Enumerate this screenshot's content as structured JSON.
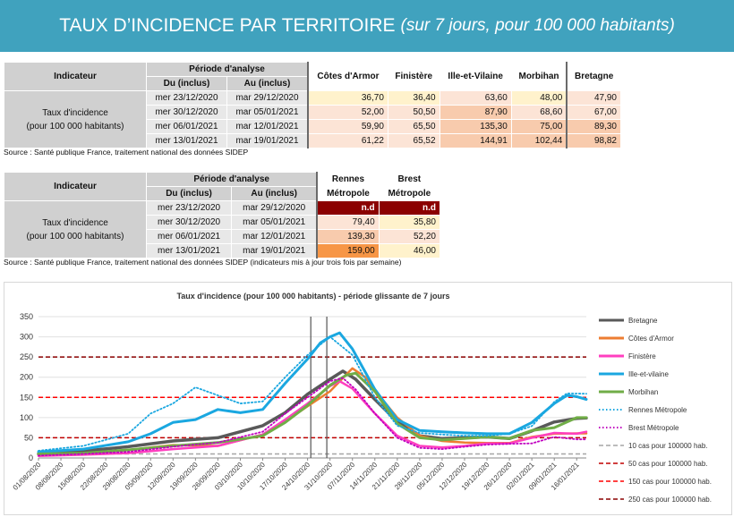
{
  "banner": {
    "title": "TAUX D’INCIDENCE PAR TERRITOIRE",
    "subtitle": "(sur 7 jours, pour 100 000 habitants)"
  },
  "table1": {
    "h_indicateur": "Indicateur",
    "h_periode": "Période d'analyse",
    "h_du": "Du (inclus)",
    "h_au": "Au (inclus)",
    "cols": [
      "Côtes d'Armor",
      "Finistère",
      "Ille-et-Vilaine",
      "Morbihan",
      "Bretagne"
    ],
    "label1": "Taux d'incidence",
    "label2": "(pour 100 000 habitants)",
    "rows": [
      {
        "du": "mer 23/12/2020",
        "au": "mar 29/12/2020",
        "vals": [
          "36,70",
          "36,40",
          "63,60",
          "48,00",
          "47,90"
        ],
        "colors": [
          "#fff2cc",
          "#fff2cc",
          "#fce4d6",
          "#fff2cc",
          "#fce4d6"
        ]
      },
      {
        "du": "mer 30/12/2020",
        "au": "mar 05/01/2021",
        "vals": [
          "52,00",
          "50,50",
          "87,90",
          "68,60",
          "67,00"
        ],
        "colors": [
          "#fce4d6",
          "#fce4d6",
          "#f8cbad",
          "#fce4d6",
          "#fce4d6"
        ]
      },
      {
        "du": "mer 06/01/2021",
        "au": "mar 12/01/2021",
        "vals": [
          "59,90",
          "65,50",
          "135,30",
          "75,00",
          "89,30"
        ],
        "colors": [
          "#fce4d6",
          "#fce4d6",
          "#f8cbad",
          "#f8cbad",
          "#f8cbad"
        ]
      },
      {
        "du": "mer 13/01/2021",
        "au": "mar 19/01/2021",
        "vals": [
          "61,22",
          "65,52",
          "144,91",
          "102,44",
          "98,82"
        ],
        "colors": [
          "#fce4d6",
          "#fce4d6",
          "#f8cbad",
          "#f8cbad",
          "#f8cbad"
        ]
      }
    ],
    "source": "Source  : Santé publique France, traitement national des données SIDEP"
  },
  "table2": {
    "h_indicateur": "Indicateur",
    "h_periode": "Période d'analyse",
    "h_du": "Du (inclus)",
    "h_au": "Au (inclus)",
    "col1_l1": "Rennes",
    "col1_l2": "Métropole",
    "col2_l1": "Brest",
    "col2_l2": "Métropole",
    "label1": "Taux d'incidence",
    "label2": "(pour 100 000 habitants)",
    "rows": [
      {
        "du": "mer 23/12/2020",
        "au": "mar 29/12/2020",
        "vals": [
          "n.d",
          "n.d"
        ],
        "colors": [
          "#8b0000",
          "#8b0000"
        ],
        "textcolors": [
          "#ffffff",
          "#ffffff"
        ]
      },
      {
        "du": "mer 30/12/2020",
        "au": "mar 05/01/2021",
        "vals": [
          "79,40",
          "35,80"
        ],
        "colors": [
          "#fce4d6",
          "#fff2cc"
        ],
        "textcolors": [
          "#111111",
          "#111111"
        ]
      },
      {
        "du": "mer 06/01/2021",
        "au": "mar 12/01/2021",
        "vals": [
          "139,30",
          "52,20"
        ],
        "colors": [
          "#f8cbad",
          "#fce4d6"
        ],
        "textcolors": [
          "#111111",
          "#111111"
        ]
      },
      {
        "du": "mer 13/01/2021",
        "au": "mar 19/01/2021",
        "vals": [
          "159,00",
          "46,00"
        ],
        "colors": [
          "#f79646",
          "#fff2cc"
        ],
        "textcolors": [
          "#111111",
          "#111111"
        ]
      }
    ],
    "source": "Source  : Santé publique France, traitement national des données SIDEP (indicateurs mis à jour trois fois par semaine)"
  },
  "chart_data": {
    "type": "line",
    "title": "Taux d'incidence (pour 100 000 habitants) - période glissante de 7 jours",
    "ylim": [
      0,
      350
    ],
    "yticks": [
      0,
      50,
      100,
      150,
      200,
      250,
      300,
      350
    ],
    "x_start": "01/08/2020",
    "x_end": "19/01/2021",
    "xticks": [
      "01/08/2020",
      "08/08/2020",
      "15/08/2020",
      "22/08/2020",
      "29/08/2020",
      "05/09/2020",
      "12/09/2020",
      "19/09/2020",
      "26/09/2020",
      "03/10/2020",
      "10/10/2020",
      "17/10/2020",
      "24/10/2020",
      "31/10/2020",
      "07/11/2020",
      "14/11/2020",
      "21/11/2020",
      "28/11/2020",
      "05/12/2020",
      "12/12/2020",
      "19/12/2020",
      "26/12/2020",
      "02/01/2021",
      "09/01/2021",
      "16/01/2021"
    ],
    "vlines": [
      "25/10/2020",
      "30/10/2020"
    ],
    "series": [
      {
        "name": "Bretagne",
        "color": "#595959",
        "style": "solid",
        "width": 3.5,
        "points": [
          [
            "01/08/2020",
            10
          ],
          [
            "15/08/2020",
            17
          ],
          [
            "29/08/2020",
            28
          ],
          [
            "12/09/2020",
            42
          ],
          [
            "26/09/2020",
            50
          ],
          [
            "10/10/2020",
            80
          ],
          [
            "17/10/2020",
            112
          ],
          [
            "24/10/2020",
            158
          ],
          [
            "31/10/2020",
            195
          ],
          [
            "04/11/2020",
            215
          ],
          [
            "08/11/2020",
            195
          ],
          [
            "14/11/2020",
            145
          ],
          [
            "21/11/2020",
            90
          ],
          [
            "28/11/2020",
            55
          ],
          [
            "05/12/2020",
            48
          ],
          [
            "12/12/2020",
            50
          ],
          [
            "19/12/2020",
            52
          ],
          [
            "26/12/2020",
            48
          ],
          [
            "02/01/2021",
            67
          ],
          [
            "09/01/2021",
            89
          ],
          [
            "16/01/2021",
            98
          ],
          [
            "19/01/2021",
            99
          ]
        ]
      },
      {
        "name": "Côtes d'Armor",
        "color": "#ed7d31",
        "style": "solid",
        "width": 2.5,
        "points": [
          [
            "01/08/2020",
            8
          ],
          [
            "15/08/2020",
            12
          ],
          [
            "29/08/2020",
            20
          ],
          [
            "12/09/2020",
            32
          ],
          [
            "26/09/2020",
            30
          ],
          [
            "10/10/2020",
            58
          ],
          [
            "17/10/2020",
            90
          ],
          [
            "24/10/2020",
            128
          ],
          [
            "31/10/2020",
            165
          ],
          [
            "07/11/2020",
            222
          ],
          [
            "11/11/2020",
            200
          ],
          [
            "14/11/2020",
            168
          ],
          [
            "21/11/2020",
            100
          ],
          [
            "28/11/2020",
            55
          ],
          [
            "05/12/2020",
            42
          ],
          [
            "12/12/2020",
            38
          ],
          [
            "19/12/2020",
            37
          ],
          [
            "26/12/2020",
            37
          ],
          [
            "02/01/2021",
            52
          ],
          [
            "09/01/2021",
            60
          ],
          [
            "16/01/2021",
            61
          ],
          [
            "19/01/2021",
            61
          ]
        ]
      },
      {
        "name": "Finistère",
        "color": "#ff3fbf",
        "style": "solid",
        "width": 2.5,
        "points": [
          [
            "01/08/2020",
            5
          ],
          [
            "15/08/2020",
            8
          ],
          [
            "29/08/2020",
            12
          ],
          [
            "12/09/2020",
            22
          ],
          [
            "26/09/2020",
            30
          ],
          [
            "10/10/2020",
            58
          ],
          [
            "17/10/2020",
            95
          ],
          [
            "24/10/2020",
            135
          ],
          [
            "31/10/2020",
            178
          ],
          [
            "03/11/2020",
            190
          ],
          [
            "07/11/2020",
            172
          ],
          [
            "14/11/2020",
            110
          ],
          [
            "21/11/2020",
            55
          ],
          [
            "28/11/2020",
            30
          ],
          [
            "05/12/2020",
            26
          ],
          [
            "12/12/2020",
            30
          ],
          [
            "19/12/2020",
            36
          ],
          [
            "26/12/2020",
            36
          ],
          [
            "02/01/2021",
            50
          ],
          [
            "09/01/2021",
            62
          ],
          [
            "16/01/2021",
            60
          ],
          [
            "19/01/2021",
            65
          ]
        ]
      },
      {
        "name": "Ille-et-vilaine",
        "color": "#1aa7e0",
        "style": "solid",
        "width": 3,
        "points": [
          [
            "01/08/2020",
            15
          ],
          [
            "15/08/2020",
            22
          ],
          [
            "29/08/2020",
            40
          ],
          [
            "05/09/2020",
            60
          ],
          [
            "12/09/2020",
            88
          ],
          [
            "19/09/2020",
            95
          ],
          [
            "26/09/2020",
            120
          ],
          [
            "03/10/2020",
            112
          ],
          [
            "10/10/2020",
            120
          ],
          [
            "17/10/2020",
            185
          ],
          [
            "24/10/2020",
            245
          ],
          [
            "28/10/2020",
            285
          ],
          [
            "31/10/2020",
            300
          ],
          [
            "03/11/2020",
            310
          ],
          [
            "07/11/2020",
            270
          ],
          [
            "14/11/2020",
            170
          ],
          [
            "21/11/2020",
            95
          ],
          [
            "28/11/2020",
            68
          ],
          [
            "05/12/2020",
            65
          ],
          [
            "12/12/2020",
            62
          ],
          [
            "19/12/2020",
            60
          ],
          [
            "26/12/2020",
            60
          ],
          [
            "02/01/2021",
            88
          ],
          [
            "09/01/2021",
            135
          ],
          [
            "13/01/2021",
            155
          ],
          [
            "16/01/2021",
            152
          ],
          [
            "19/01/2021",
            145
          ]
        ]
      },
      {
        "name": "Morbihan",
        "color": "#70ad47",
        "style": "solid",
        "width": 3,
        "points": [
          [
            "01/08/2020",
            10
          ],
          [
            "15/08/2020",
            12
          ],
          [
            "29/08/2020",
            20
          ],
          [
            "12/09/2020",
            30
          ],
          [
            "26/09/2020",
            38
          ],
          [
            "10/10/2020",
            55
          ],
          [
            "17/10/2020",
            88
          ],
          [
            "24/10/2020",
            130
          ],
          [
            "31/10/2020",
            180
          ],
          [
            "05/11/2020",
            205
          ],
          [
            "08/11/2020",
            210
          ],
          [
            "14/11/2020",
            165
          ],
          [
            "21/11/2020",
            85
          ],
          [
            "28/11/2020",
            50
          ],
          [
            "05/12/2020",
            45
          ],
          [
            "12/12/2020",
            48
          ],
          [
            "19/12/2020",
            52
          ],
          [
            "26/12/2020",
            48
          ],
          [
            "02/01/2021",
            68
          ],
          [
            "09/01/2021",
            75
          ],
          [
            "16/01/2021",
            100
          ],
          [
            "19/01/2021",
            100
          ]
        ]
      },
      {
        "name": "Rennes Métropole",
        "color": "#1aa7e0",
        "style": "dotted",
        "width": 1.8,
        "points": [
          [
            "01/08/2020",
            18
          ],
          [
            "15/08/2020",
            30
          ],
          [
            "29/08/2020",
            60
          ],
          [
            "05/09/2020",
            110
          ],
          [
            "12/09/2020",
            135
          ],
          [
            "19/09/2020",
            175
          ],
          [
            "26/09/2020",
            155
          ],
          [
            "03/10/2020",
            135
          ],
          [
            "10/10/2020",
            140
          ],
          [
            "17/10/2020",
            200
          ],
          [
            "24/10/2020",
            255
          ],
          [
            "31/10/2020",
            300
          ],
          [
            "07/11/2020",
            255
          ],
          [
            "14/11/2020",
            150
          ],
          [
            "21/11/2020",
            80
          ],
          [
            "28/11/2020",
            62
          ],
          [
            "05/12/2020",
            58
          ],
          [
            "12/12/2020",
            55
          ],
          [
            "19/12/2020",
            55
          ],
          [
            "26/12/2020",
            60
          ],
          [
            "02/01/2021",
            79
          ],
          [
            "09/01/2021",
            139
          ],
          [
            "13/01/2021",
            160
          ],
          [
            "19/01/2021",
            159
          ]
        ]
      },
      {
        "name": "Brest Métropole",
        "color": "#c000c0",
        "style": "dotted",
        "width": 1.8,
        "points": [
          [
            "01/08/2020",
            6
          ],
          [
            "15/08/2020",
            10
          ],
          [
            "29/08/2020",
            15
          ],
          [
            "12/09/2020",
            28
          ],
          [
            "26/09/2020",
            38
          ],
          [
            "10/10/2020",
            65
          ],
          [
            "17/10/2020",
            110
          ],
          [
            "24/10/2020",
            150
          ],
          [
            "31/10/2020",
            190
          ],
          [
            "04/11/2020",
            198
          ],
          [
            "08/11/2020",
            170
          ],
          [
            "14/11/2020",
            110
          ],
          [
            "21/11/2020",
            50
          ],
          [
            "28/11/2020",
            25
          ],
          [
            "05/12/2020",
            22
          ],
          [
            "12/12/2020",
            28
          ],
          [
            "19/12/2020",
            33
          ],
          [
            "26/12/2020",
            35
          ],
          [
            "02/01/2021",
            36
          ],
          [
            "09/01/2021",
            52
          ],
          [
            "16/01/2021",
            46
          ],
          [
            "19/01/2021",
            46
          ]
        ]
      }
    ],
    "thresholds": [
      {
        "name": "10 cas pour 100000 hab.",
        "value": 10,
        "color": "#a6a6a6"
      },
      {
        "name": "50 cas pour 100000 hab.",
        "value": 50,
        "color": "#c00000"
      },
      {
        "name": "150 cas pour 100000 hab.",
        "value": 150,
        "color": "#ff0000"
      },
      {
        "name": "250 cas pour 100000 hab.",
        "value": 250,
        "color": "#8b0000"
      }
    ]
  }
}
